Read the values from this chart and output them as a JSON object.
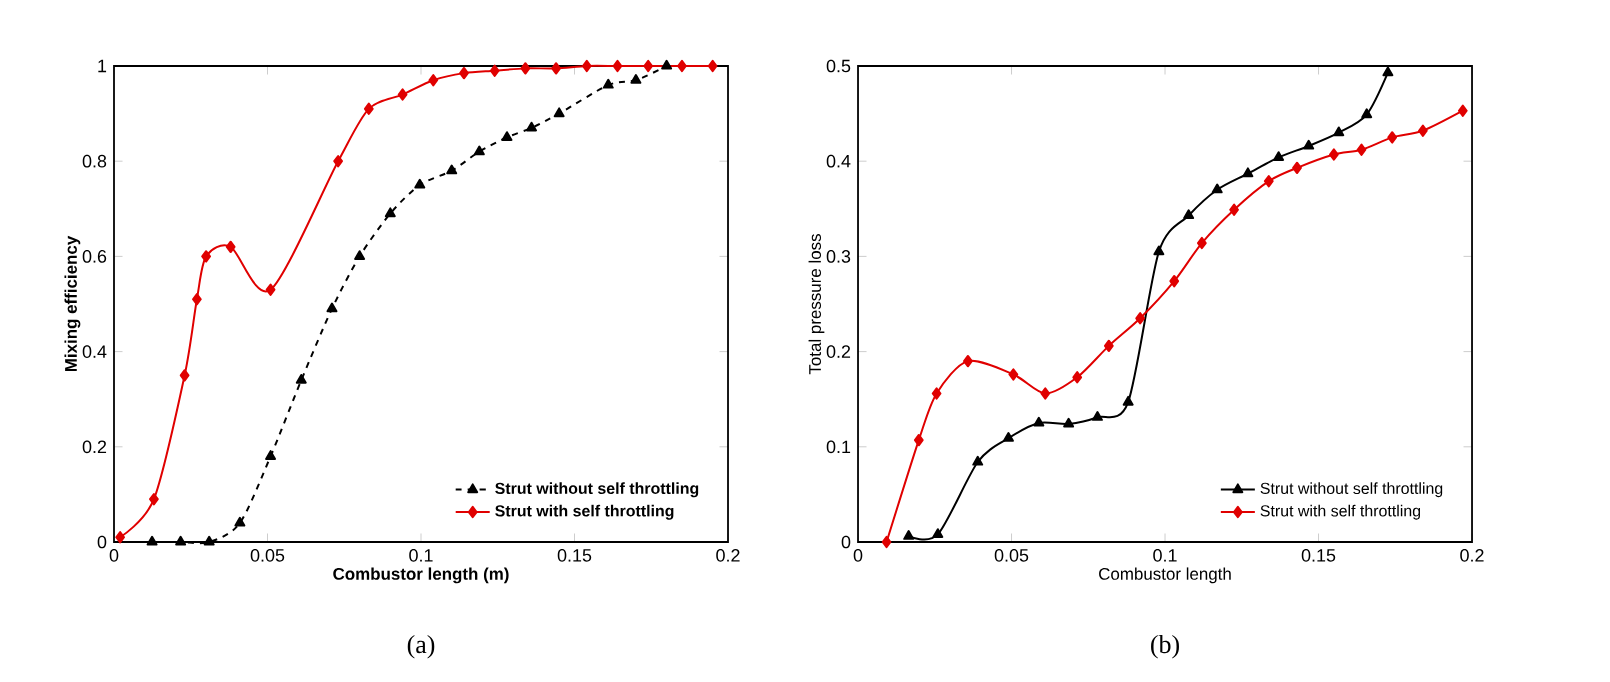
{
  "chart_data": [
    {
      "type": "line",
      "xlabel": "Combustor length (m)",
      "ylabel": "Mixing efficiency",
      "annotations": [
        "(a)"
      ],
      "xlim": [
        0,
        0.2
      ],
      "ylim": [
        0,
        1
      ],
      "xticks": [
        0,
        0.05,
        0.1,
        0.15,
        0.2
      ],
      "yticks": [
        0,
        0.2,
        0.4,
        0.6,
        0.8,
        1
      ],
      "legend": "bottom right",
      "grid": false,
      "series": [
        {
          "name": "Strut without self throttling",
          "color": "#000000",
          "marker": "triangle",
          "line_style": "dashed",
          "x": [
            0.0124,
            0.0217,
            0.031,
            0.041,
            0.051,
            0.061,
            0.071,
            0.08,
            0.09,
            0.0996,
            0.11,
            0.119,
            0.128,
            0.136,
            0.145,
            0.161,
            0.17,
            0.18
          ],
          "values": [
            0,
            0,
            0,
            0.04,
            0.18,
            0.34,
            0.49,
            0.6,
            0.69,
            0.75,
            0.78,
            0.82,
            0.85,
            0.87,
            0.9,
            0.96,
            0.97,
            1.0
          ]
        },
        {
          "name": "Strut with self throttling",
          "color": "#e00000",
          "marker": "diamond",
          "line_style": "solid",
          "x": [
            0.002,
            0.013,
            0.023,
            0.027,
            0.03,
            0.038,
            0.051,
            0.073,
            0.083,
            0.094,
            0.104,
            0.114,
            0.124,
            0.134,
            0.144,
            0.154,
            0.164,
            0.174,
            0.185,
            0.195
          ],
          "values": [
            0.01,
            0.09,
            0.35,
            0.51,
            0.6,
            0.62,
            0.53,
            0.8,
            0.91,
            0.94,
            0.97,
            0.985,
            0.99,
            0.995,
            0.995,
            1.0,
            1.0,
            1.0,
            1.0,
            1.0
          ]
        }
      ]
    },
    {
      "type": "line",
      "xlabel": "Combustor length",
      "ylabel": "Total pressure loss",
      "annotations": [
        "(b)"
      ],
      "xlim": [
        0,
        0.2
      ],
      "ylim": [
        0,
        0.5
      ],
      "xticks": [
        0,
        0.05,
        0.1,
        0.15,
        0.2
      ],
      "yticks": [
        0,
        0.1,
        0.2,
        0.3,
        0.4,
        0.5
      ],
      "legend": "bottom right",
      "grid": false,
      "series": [
        {
          "name": "Strut without self throttling",
          "color": "#000000",
          "marker": "triangle",
          "line_style": "solid",
          "x": [
            0.0165,
            0.026,
            0.039,
            0.049,
            0.0589,
            0.0686,
            0.078,
            0.088,
            0.098,
            0.1077,
            0.117,
            0.127,
            0.137,
            0.1468,
            0.1566,
            0.1657,
            0.1726
          ],
          "values": [
            0.006,
            0.008,
            0.084,
            0.109,
            0.125,
            0.124,
            0.131,
            0.147,
            0.305,
            0.343,
            0.37,
            0.387,
            0.404,
            0.416,
            0.43,
            0.449,
            0.493
          ]
        },
        {
          "name": "Strut with self throttling",
          "color": "#e00000",
          "marker": "diamond",
          "line_style": "solid",
          "x": [
            0.0093,
            0.0198,
            0.0256,
            0.0358,
            0.0506,
            0.061,
            0.0714,
            0.0817,
            0.0919,
            0.103,
            0.112,
            0.1225,
            0.1338,
            0.143,
            0.155,
            0.164,
            0.174,
            0.184,
            0.197
          ],
          "values": [
            0,
            0.107,
            0.156,
            0.19,
            0.176,
            0.156,
            0.173,
            0.206,
            0.235,
            0.274,
            0.314,
            0.349,
            0.379,
            0.393,
            0.407,
            0.412,
            0.425,
            0.432,
            0.453
          ]
        }
      ]
    }
  ]
}
